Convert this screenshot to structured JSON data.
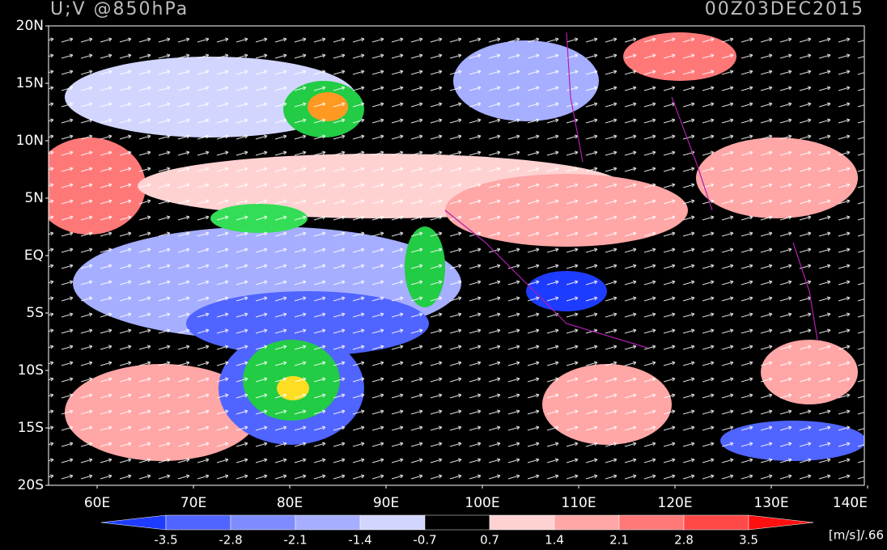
{
  "header": {
    "title": "U;V @850hPa",
    "time": "00Z03DEC2015"
  },
  "map": {
    "lat_ticks": [
      {
        "value": 20,
        "label": "20N"
      },
      {
        "value": 15,
        "label": "15N"
      },
      {
        "value": 10,
        "label": "10N"
      },
      {
        "value": 5,
        "label": "5N"
      },
      {
        "value": 0,
        "label": "EQ"
      },
      {
        "value": -5,
        "label": "5S"
      },
      {
        "value": -10,
        "label": "10S"
      },
      {
        "value": -15,
        "label": "15S"
      },
      {
        "value": -20,
        "label": "20S"
      }
    ],
    "lon_ticks": [
      {
        "value": 60,
        "label": "60E"
      },
      {
        "value": 70,
        "label": "70E"
      },
      {
        "value": 80,
        "label": "80E"
      },
      {
        "value": 90,
        "label": "90E"
      },
      {
        "value": 100,
        "label": "100E"
      },
      {
        "value": 110,
        "label": "110E"
      },
      {
        "value": 120,
        "label": "120E"
      },
      {
        "value": 130,
        "label": "130E"
      },
      {
        "value": 140,
        "label": "140E"
      }
    ]
  },
  "colorbar": {
    "ticks": [
      -3.5,
      -2.8,
      -2.1,
      -1.4,
      -0.7,
      0.7,
      1.4,
      2.1,
      2.8,
      3.5
    ],
    "colors": [
      "#1e3cff",
      "#5064ff",
      "#7f8cff",
      "#a6aeff",
      "#d2d6ff",
      "#000000",
      "#ffd2d2",
      "#ffa6a6",
      "#ff7878",
      "#ff4848",
      "#ff1010"
    ],
    "units": "[m/s]/.66"
  }
}
